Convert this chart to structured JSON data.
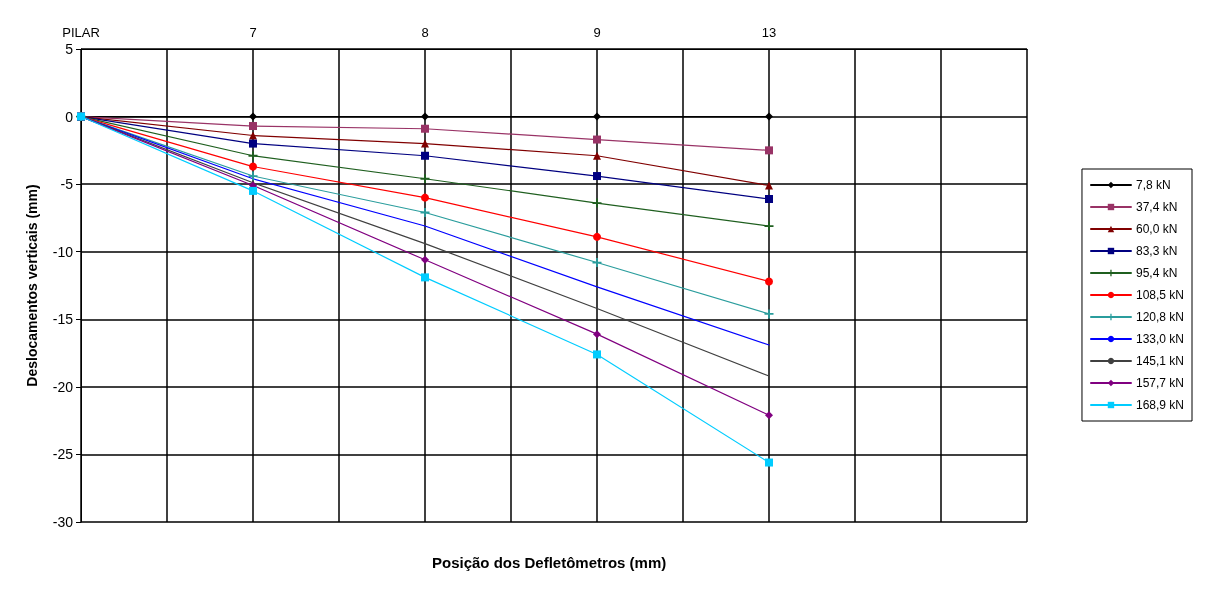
{
  "chart_data": {
    "type": "line",
    "xlabel": "Posição dos Defletômetros (mm)",
    "ylabel": "Deslocamentos verticais (mm)",
    "categories": [
      "PILAR",
      null,
      "7",
      null,
      "8",
      null,
      "9",
      null,
      "13",
      null,
      null,
      null
    ],
    "ylim": [
      -30,
      5
    ],
    "yticks": [
      -30,
      -25,
      -20,
      -15,
      -10,
      -5,
      0,
      5
    ],
    "grid": true,
    "legend": "right",
    "line_style": "solid",
    "series": [
      {
        "name": "7,8 kN",
        "color": "#000000",
        "marker": "diamond",
        "values": [
          0,
          null,
          0,
          null,
          0,
          null,
          0,
          null,
          0,
          null,
          null,
          null
        ]
      },
      {
        "name": "37,4 kN",
        "color": "#993366",
        "marker": "square",
        "values": [
          0,
          null,
          -0.7,
          null,
          -0.9,
          null,
          -1.7,
          null,
          -2.5,
          null,
          null,
          null
        ]
      },
      {
        "name": "60,0 kN",
        "color": "#800000",
        "marker": "triangle",
        "values": [
          0,
          null,
          -1.4,
          null,
          -2.0,
          null,
          -2.9,
          null,
          -5.1,
          null,
          null,
          null
        ]
      },
      {
        "name": "83,3 kN",
        "color": "#000080",
        "marker": "square",
        "values": [
          0,
          null,
          -2.0,
          null,
          -2.9,
          null,
          -4.4,
          null,
          -6.1,
          null,
          null,
          null
        ]
      },
      {
        "name": "95,4 kN",
        "color": "#1f5f1f",
        "marker": "cross",
        "values": [
          0,
          null,
          -2.9,
          null,
          -4.6,
          null,
          -6.4,
          null,
          -8.1,
          null,
          null,
          null
        ]
      },
      {
        "name": "108,5 kN",
        "color": "#ff0000",
        "marker": "circle",
        "values": [
          0,
          null,
          -3.7,
          null,
          -6.0,
          null,
          -8.9,
          null,
          -12.2,
          null,
          null,
          null
        ]
      },
      {
        "name": "120,8 kN",
        "color": "#2a9d9d",
        "marker": "cross",
        "values": [
          0,
          null,
          -4.4,
          null,
          -7.1,
          null,
          -10.8,
          null,
          -14.6,
          null,
          null,
          null
        ]
      },
      {
        "name": "133,0 kN",
        "color": "#0000ff",
        "marker": "none",
        "values": [
          0,
          null,
          -4.6,
          null,
          -8.1,
          null,
          -12.6,
          null,
          -16.9,
          null,
          null,
          null
        ]
      },
      {
        "name": "145,1 kN",
        "color": "#404040",
        "marker": "none",
        "values": [
          0,
          null,
          -4.9,
          null,
          -9.4,
          null,
          -14.2,
          null,
          -19.2,
          null,
          null,
          null
        ]
      },
      {
        "name": "157,7 kN",
        "color": "#800080",
        "marker": "diamond",
        "values": [
          0,
          null,
          -5.1,
          null,
          -10.6,
          null,
          -16.1,
          null,
          -22.1,
          null,
          null,
          null
        ]
      },
      {
        "name": "168,9 kN",
        "color": "#00ccff",
        "marker": "square",
        "values": [
          0,
          null,
          -5.5,
          null,
          -11.9,
          null,
          -17.6,
          null,
          -25.6,
          null,
          null,
          null
        ]
      }
    ]
  }
}
